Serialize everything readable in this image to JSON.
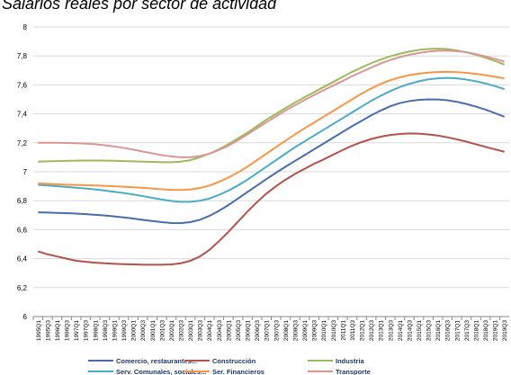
{
  "chart_data": {
    "type": "line",
    "title": "Salarios reales por sector de actividad",
    "categories": [
      "1995Q1",
      "1995Q3",
      "1996Q1",
      "1996Q3",
      "1997Q1",
      "1997Q3",
      "1998Q1",
      "1998Q3",
      "1999Q1",
      "1999Q3",
      "2000Q1",
      "2000Q3",
      "2001Q1",
      "2001Q3",
      "2002Q1",
      "2002Q3",
      "2003Q1",
      "2003Q3",
      "2004Q1",
      "2004Q3",
      "2005Q1",
      "2005Q3",
      "2006Q1",
      "2006Q3",
      "2007Q1",
      "2007Q3",
      "2008Q1",
      "2008Q3",
      "2009Q1",
      "2009Q3",
      "2010Q1",
      "2010Q3",
      "2011Q1",
      "2011Q3",
      "2012Q1",
      "2012Q3",
      "2013Q1",
      "2013Q3",
      "2014Q1",
      "2014Q3",
      "2015Q1",
      "2015Q3",
      "2016Q1",
      "2016Q3",
      "2017Q1",
      "2017Q3",
      "2018Q1",
      "2018Q3",
      "2019Q1",
      "2019Q3"
    ],
    "series": [
      {
        "name": "Comercio, restaurantes...",
        "color": "#4a6cae",
        "values": [
          6.72,
          6.718,
          6.716,
          6.714,
          6.711,
          6.707,
          6.703,
          6.698,
          6.692,
          6.685,
          6.677,
          6.668,
          6.66,
          6.652,
          6.646,
          6.645,
          6.652,
          6.668,
          6.695,
          6.73,
          6.77,
          6.815,
          6.86,
          6.905,
          6.95,
          6.993,
          7.035,
          7.075,
          7.115,
          7.155,
          7.195,
          7.235,
          7.275,
          7.315,
          7.352,
          7.39,
          7.423,
          7.452,
          7.474,
          7.488,
          7.496,
          7.5,
          7.499,
          7.494,
          7.483,
          7.468,
          7.45,
          7.43,
          7.405,
          7.38
        ]
      },
      {
        "name": "Construcción",
        "color": "#b5514c",
        "values": [
          6.45,
          6.43,
          6.415,
          6.4,
          6.385,
          6.378,
          6.372,
          6.368,
          6.364,
          6.362,
          6.36,
          6.358,
          6.358,
          6.358,
          6.36,
          6.368,
          6.385,
          6.415,
          6.46,
          6.52,
          6.585,
          6.655,
          6.725,
          6.79,
          6.85,
          6.9,
          6.945,
          6.985,
          7.02,
          7.055,
          7.085,
          7.118,
          7.15,
          7.18,
          7.205,
          7.226,
          7.242,
          7.254,
          7.261,
          7.265,
          7.263,
          7.258,
          7.25,
          7.238,
          7.224,
          7.208,
          7.19,
          7.172,
          7.155,
          7.138
        ]
      },
      {
        "name": "Industria",
        "color": "#9bbb59",
        "values": [
          7.07,
          7.072,
          7.074,
          7.075,
          7.077,
          7.078,
          7.078,
          7.077,
          7.076,
          7.074,
          7.072,
          7.07,
          7.068,
          7.066,
          7.066,
          7.07,
          7.08,
          7.1,
          7.125,
          7.155,
          7.19,
          7.23,
          7.27,
          7.315,
          7.36,
          7.4,
          7.44,
          7.478,
          7.515,
          7.55,
          7.585,
          7.62,
          7.655,
          7.69,
          7.72,
          7.75,
          7.775,
          7.797,
          7.815,
          7.83,
          7.842,
          7.848,
          7.85,
          7.847,
          7.838,
          7.825,
          7.808,
          7.788,
          7.765,
          7.74
        ]
      },
      {
        "name": "Serv. Comunales, sociales...",
        "color": "#4bacc6",
        "values": [
          6.91,
          6.905,
          6.9,
          6.895,
          6.89,
          6.884,
          6.878,
          6.87,
          6.862,
          6.853,
          6.843,
          6.832,
          6.82,
          6.808,
          6.798,
          6.792,
          6.793,
          6.8,
          6.815,
          6.84,
          6.87,
          6.905,
          6.945,
          6.99,
          7.035,
          7.08,
          7.125,
          7.17,
          7.21,
          7.25,
          7.29,
          7.33,
          7.37,
          7.41,
          7.45,
          7.49,
          7.525,
          7.557,
          7.585,
          7.607,
          7.625,
          7.638,
          7.645,
          7.648,
          7.645,
          7.637,
          7.625,
          7.61,
          7.592,
          7.57
        ]
      },
      {
        "name": "Ser. Financieros",
        "color": "#f79646",
        "values": [
          6.92,
          6.917,
          6.914,
          6.911,
          6.909,
          6.907,
          6.905,
          6.903,
          6.9,
          6.897,
          6.893,
          6.889,
          6.884,
          6.879,
          6.875,
          6.874,
          6.878,
          6.888,
          6.905,
          6.93,
          6.96,
          6.995,
          7.035,
          7.08,
          7.125,
          7.17,
          7.215,
          7.258,
          7.3,
          7.34,
          7.38,
          7.42,
          7.46,
          7.5,
          7.54,
          7.575,
          7.607,
          7.632,
          7.652,
          7.667,
          7.678,
          7.685,
          7.689,
          7.69,
          7.688,
          7.683,
          7.676,
          7.667,
          7.656,
          7.645
        ]
      },
      {
        "name": "Transporte",
        "color": "#d99694",
        "values": [
          7.2,
          7.2,
          7.2,
          7.199,
          7.197,
          7.194,
          7.19,
          7.183,
          7.175,
          7.165,
          7.153,
          7.14,
          7.127,
          7.115,
          7.106,
          7.1,
          7.1,
          7.108,
          7.125,
          7.15,
          7.18,
          7.217,
          7.258,
          7.3,
          7.342,
          7.383,
          7.423,
          7.46,
          7.495,
          7.53,
          7.563,
          7.595,
          7.627,
          7.66,
          7.69,
          7.72,
          7.748,
          7.772,
          7.792,
          7.808,
          7.82,
          7.83,
          7.835,
          7.837,
          7.833,
          7.825,
          7.812,
          7.797,
          7.78,
          7.76
        ]
      }
    ],
    "ylim": [
      6,
      8
    ],
    "yticks": [
      6,
      {
        "value": 6.2,
        "label": "6,2"
      },
      {
        "value": 6.4,
        "label": "6,4"
      },
      {
        "value": 6.6,
        "label": "6,6"
      },
      {
        "value": 6.8,
        "label": "6,8"
      },
      7,
      {
        "value": 7.2,
        "label": "7,2"
      },
      {
        "value": 7.4,
        "label": "7,4"
      },
      {
        "value": 7.6,
        "label": "7,6"
      },
      {
        "value": 7.8,
        "label": "7,8"
      },
      8
    ],
    "grid": true,
    "legend": "bottom"
  }
}
